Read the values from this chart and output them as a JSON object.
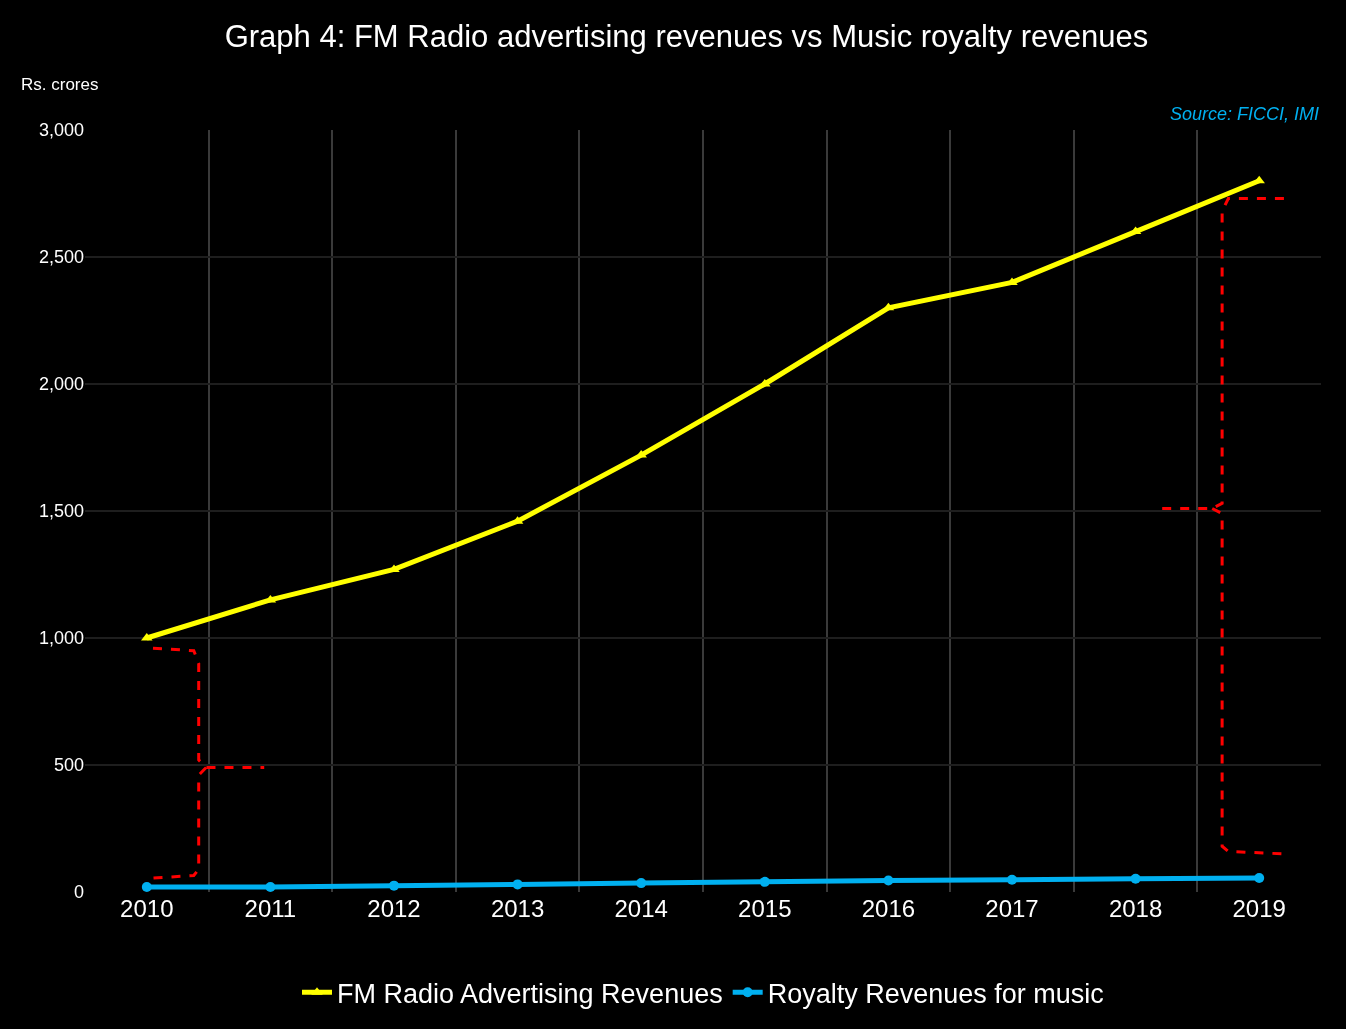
{
  "chart_data": {
    "type": "line",
    "title": "Graph 4: FM Radio advertising revenues vs Music royalty revenues",
    "ylabel": "Rs. crores",
    "annotations": [
      "Source: FICCI, IMI"
    ],
    "categories": [
      "2010",
      "2011",
      "2012",
      "2013",
      "2014",
      "2015",
      "2016",
      "2017",
      "2018",
      "2019"
    ],
    "series": [
      {
        "name": "FM Radio Advertising Revenues",
        "color": "#ffff00",
        "marker": "triangle",
        "values": [
          1000,
          1150,
          1270,
          1460,
          1720,
          2000,
          2300,
          2400,
          2600,
          2800
        ]
      },
      {
        "name": "Royalty Revenues for music",
        "color": "#00b0f0",
        "marker": "circle",
        "values": [
          20,
          20,
          25,
          30,
          35,
          40,
          45,
          48,
          52,
          55
        ]
      }
    ],
    "ylim": [
      0,
      3000
    ],
    "yticks": [
      {
        "value": 0,
        "label": "0"
      },
      {
        "value": 500,
        "label": "500"
      },
      {
        "value": 1000,
        "label": "1,000"
      },
      {
        "value": 1500,
        "label": "1,500"
      },
      {
        "value": 2000,
        "label": "2,000"
      },
      {
        "value": 2500,
        "label": "2,500"
      },
      {
        "value": 3000,
        "label": "3,000"
      }
    ],
    "grid": true,
    "legend": "bottom",
    "line_style": "solid"
  }
}
